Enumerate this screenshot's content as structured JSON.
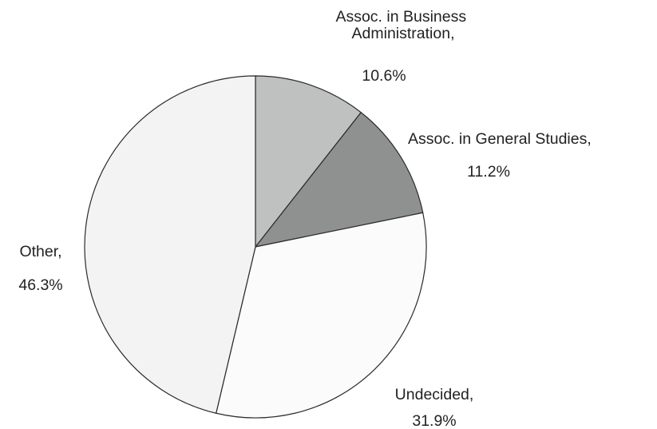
{
  "chart_data": {
    "type": "pie",
    "title": "",
    "slices": [
      {
        "label_lines": [
          "Assoc. in Business",
          "Administration,"
        ],
        "value_label": "10.6%",
        "value": 10.6,
        "color": "#bfc1c0"
      },
      {
        "label_lines": [
          "Assoc. in General Studies,"
        ],
        "value_label": "11.2%",
        "value": 11.2,
        "color": "#8e918f"
      },
      {
        "label_lines": [
          "Undecided,"
        ],
        "value_label": "31.9%",
        "value": 31.9,
        "color": "#fbfbfb"
      },
      {
        "label_lines": [
          "Other,"
        ],
        "value_label": "46.3%",
        "value": 46.3,
        "color": "#f3f3f3"
      }
    ],
    "start": "12 o'clock",
    "direction": "clockwise",
    "legend": "none"
  }
}
